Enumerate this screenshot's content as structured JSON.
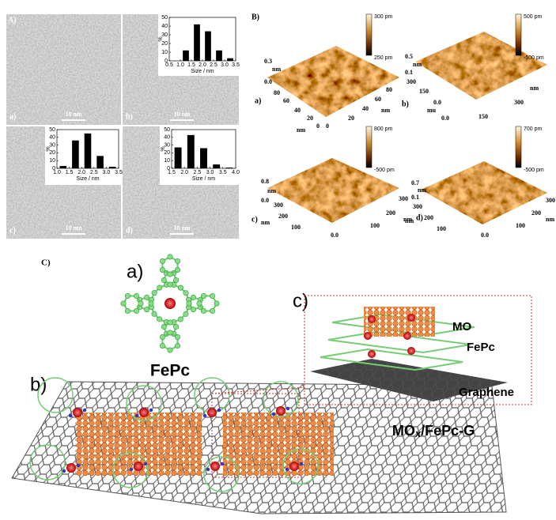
{
  "panel_a": {
    "label": "A)",
    "images": [
      {
        "label": "a)",
        "scale_bar": "10 nm"
      },
      {
        "label": "b)",
        "scale_bar": "10 nm"
      },
      {
        "label": "c)",
        "scale_bar": "10 nm"
      },
      {
        "label": "d)",
        "scale_bar": "10 nm"
      }
    ],
    "histograms": [
      {
        "type": "histogram",
        "y_label": "%",
        "x_label": "Size / nm",
        "xlim": [
          0.5,
          3.5
        ],
        "ylim": [
          0,
          50
        ],
        "xticks": [
          0.5,
          {
            "value": 1,
            "label": "1.0"
          },
          1.5,
          {
            "value": 2,
            "label": "2.0"
          },
          2.5,
          {
            "value": 3,
            "label": "3.0"
          },
          3.5
        ],
        "yticks": [
          0,
          10,
          20,
          30,
          40,
          50
        ],
        "bins": [
          1.0,
          1.5,
          2.0,
          2.5,
          3.0,
          3.5
        ],
        "values": [
          12,
          42,
          34,
          12,
          3
        ]
      },
      {
        "type": "histogram",
        "y_label": "%",
        "x_label": "Size / nm",
        "xlim": [
          1,
          3.5
        ],
        "ylim": [
          0,
          50
        ],
        "xticks": [
          {
            "value": 1,
            "label": "1.0"
          },
          1.5,
          {
            "value": 2,
            "label": "2.0"
          },
          2.5,
          {
            "value": 3,
            "label": "3.0"
          },
          3.5
        ],
        "yticks": [
          0,
          10,
          20,
          30,
          40,
          50
        ],
        "bins": [
          1.0,
          1.5,
          2.0,
          2.5,
          3.0,
          3.5
        ],
        "values": [
          3,
          36,
          45,
          16,
          2
        ]
      },
      {
        "type": "histogram",
        "y_label": "%",
        "x_label": "Size / nm",
        "xlim": [
          1.5,
          4
        ],
        "ylim": [
          0,
          50
        ],
        "xticks": [
          1.5,
          {
            "value": 2,
            "label": "2.0"
          },
          2.5,
          {
            "value": 3,
            "label": "3.0"
          },
          3.5,
          {
            "value": 4,
            "label": "4.0"
          }
        ],
        "yticks": [
          0,
          10,
          20,
          30,
          40,
          50
        ],
        "bins": [
          1.5,
          2.0,
          2.5,
          3.0,
          3.5,
          4.0
        ],
        "values": [
          27,
          43,
          26,
          5,
          1
        ]
      }
    ]
  },
  "panel_b": {
    "label": "B)",
    "plots": [
      {
        "label": "a)",
        "colorbar_max": "300 pm",
        "colorbar_min": "250 pm",
        "axis_texts": [
          "0.3",
          "nm",
          "0.0",
          "80",
          "60",
          "40",
          "20",
          "0",
          "nm",
          "0",
          "20",
          "40",
          "60",
          "80",
          "nm"
        ]
      },
      {
        "label": "b)",
        "colorbar_max": "500 pm",
        "colorbar_min": "-500 pm",
        "axis_texts": [
          "0.5",
          "nm",
          "0.1",
          "300",
          "150",
          "0.0",
          "mu",
          "0.0",
          "150",
          "300",
          "nm"
        ]
      },
      {
        "label": "c)",
        "colorbar_max": "800 pm",
        "colorbar_min": "-500 pm",
        "axis_texts": [
          "0.8",
          "nm",
          "0.0",
          "300",
          "200",
          "100",
          "nm",
          "0.0",
          "100",
          "200",
          "300",
          "nm"
        ]
      },
      {
        "label": "d)",
        "colorbar_max": "700 pm",
        "colorbar_min": "-500 pm",
        "axis_texts": [
          "0.7",
          "nm",
          "0.1",
          "300",
          "200",
          "100",
          "nm",
          "0.0",
          "100",
          "200",
          "300",
          "nm"
        ]
      }
    ]
  },
  "panel_c": {
    "label": "C)",
    "molecule": {
      "label": "a)",
      "name": "FePc"
    },
    "sheet": {
      "label": "b)"
    },
    "inset": {
      "label": "c)",
      "layers": [
        "MO",
        "FePc",
        "Graphene"
      ],
      "caption": {
        "base": "MO",
        "subscript": "x",
        "rest": "/FePc-G"
      }
    }
  }
}
